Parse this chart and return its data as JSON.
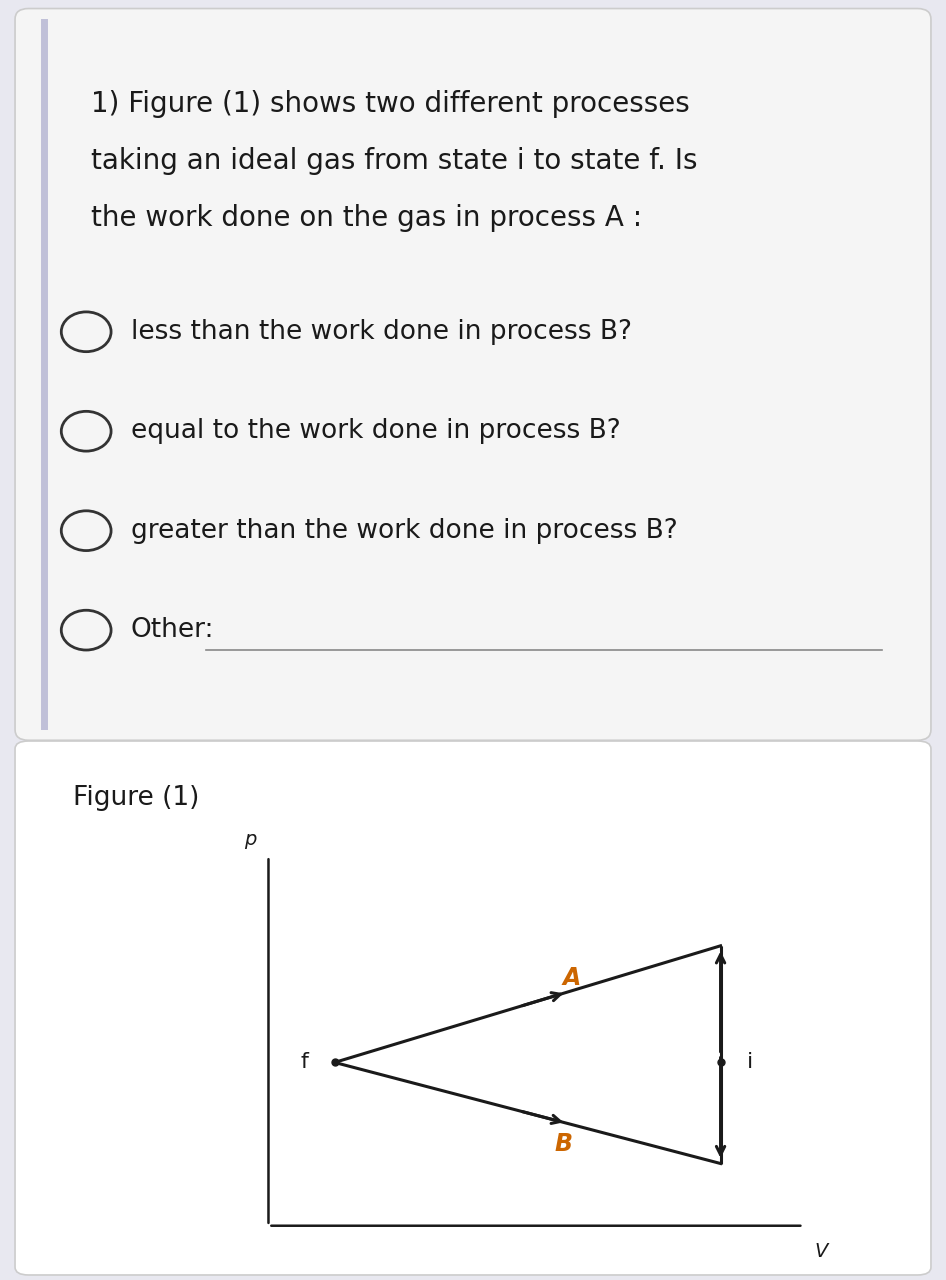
{
  "bg_color": "#e8e8f0",
  "card1_color": "#f5f5f5",
  "card2_color": "#ffffff",
  "question_text_lines": [
    "1) Figure (1) shows two different processes",
    "taking an ideal gas from state i to state f. Is",
    "the work done on the gas in process A :"
  ],
  "options": [
    "less than the work done in process B?",
    "equal to the work done in process B?",
    "greater than the work done in process B?",
    "Other:"
  ],
  "figure_label": "Figure (1)",
  "axis_label_p": "p",
  "axis_label_v": "V",
  "label_f": "f",
  "label_i": "i",
  "label_A": "A",
  "label_B": "B",
  "text_color": "#1a1a1a",
  "circle_color": "#333333",
  "line_color": "#1a1a1a",
  "process_A_color": "#cc6600",
  "process_B_color": "#cc6600",
  "font_size_question": 20,
  "font_size_options": 19,
  "font_size_fig_label": 19,
  "font_size_axis_label": 14,
  "font_size_pv_label": 16,
  "font_size_process": 17,
  "left_bar_color": "#aaaacc"
}
